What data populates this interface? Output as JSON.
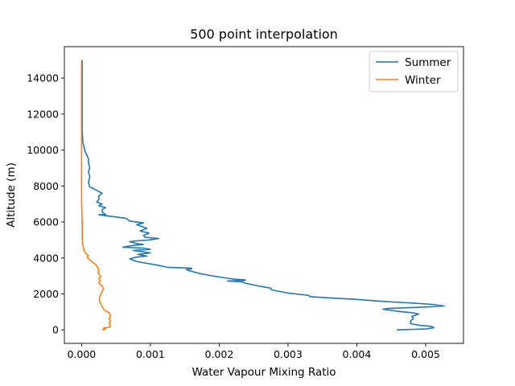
{
  "chart_data": {
    "type": "line",
    "title": "500 point interpolation",
    "xlabel": "Water Vapour Mixing Ratio",
    "ylabel": "Altitude (m)",
    "xlim": [
      -0.00025,
      0.00555
    ],
    "ylim": [
      -750,
      15750
    ],
    "xticks": [
      0,
      0.001,
      0.002,
      0.003,
      0.004,
      0.005
    ],
    "xtick_labels": [
      "0.000",
      "0.001",
      "0.002",
      "0.003",
      "0.004",
      "0.005"
    ],
    "yticks": [
      0,
      2000,
      4000,
      6000,
      8000,
      10000,
      12000,
      14000
    ],
    "ytick_labels": [
      "0",
      "2000",
      "4000",
      "6000",
      "8000",
      "10000",
      "12000",
      "14000"
    ],
    "grid": false,
    "legend_position": "top-right",
    "series": [
      {
        "name": "Summer",
        "color": "#1f77b4",
        "points": [
          [
            0.00458,
            0
          ],
          [
            0.005,
            50
          ],
          [
            0.00512,
            120
          ],
          [
            0.00508,
            200
          ],
          [
            0.0049,
            260
          ],
          [
            0.00478,
            350
          ],
          [
            0.00478,
            500
          ],
          [
            0.00482,
            620
          ],
          [
            0.0048,
            750
          ],
          [
            0.0049,
            880
          ],
          [
            0.00482,
            950
          ],
          [
            0.00463,
            1020
          ],
          [
            0.00438,
            1150
          ],
          [
            0.00448,
            1200
          ],
          [
            0.005,
            1270
          ],
          [
            0.00527,
            1330
          ],
          [
            0.0051,
            1420
          ],
          [
            0.00478,
            1500
          ],
          [
            0.0044,
            1580
          ],
          [
            0.00398,
            1700
          ],
          [
            0.0036,
            1780
          ],
          [
            0.00332,
            1850
          ],
          [
            0.0033,
            1920
          ],
          [
            0.003,
            2050
          ],
          [
            0.00282,
            2180
          ],
          [
            0.00275,
            2250
          ],
          [
            0.00275,
            2320
          ],
          [
            0.0026,
            2420
          ],
          [
            0.00238,
            2600
          ],
          [
            0.00232,
            2680
          ],
          [
            0.00212,
            2720
          ],
          [
            0.00238,
            2750
          ],
          [
            0.00238,
            2780
          ],
          [
            0.00222,
            2820
          ],
          [
            0.00212,
            2870
          ],
          [
            0.0019,
            3000
          ],
          [
            0.0017,
            3150
          ],
          [
            0.0016,
            3250
          ],
          [
            0.00152,
            3350
          ],
          [
            0.0016,
            3400
          ],
          [
            0.0016,
            3430
          ],
          [
            0.00145,
            3450
          ],
          [
            0.00125,
            3480
          ],
          [
            0.0011,
            3600
          ],
          [
            0.00095,
            3700
          ],
          [
            0.0008,
            3800
          ],
          [
            0.0007,
            3950
          ],
          [
            0.0008,
            4050
          ],
          [
            0.00095,
            4100
          ],
          [
            0.00082,
            4200
          ],
          [
            0.001,
            4280
          ],
          [
            0.00088,
            4350
          ],
          [
            0.00075,
            4420
          ],
          [
            0.001,
            4480
          ],
          [
            0.0009,
            4550
          ],
          [
            0.0006,
            4600
          ],
          [
            0.00072,
            4680
          ],
          [
            0.0009,
            4750
          ],
          [
            0.0008,
            4800
          ],
          [
            0.0007,
            4900
          ],
          [
            0.0008,
            4950
          ],
          [
            0.00098,
            5000
          ],
          [
            0.00112,
            5080
          ],
          [
            0.00092,
            5150
          ],
          [
            0.0009,
            5250
          ],
          [
            0.00098,
            5380
          ],
          [
            0.00085,
            5500
          ],
          [
            0.00095,
            5650
          ],
          [
            0.0008,
            5850
          ],
          [
            0.0009,
            5950
          ],
          [
            0.0007,
            6050
          ],
          [
            0.00065,
            6200
          ],
          [
            0.00035,
            6350
          ],
          [
            0.00025,
            6400
          ],
          [
            0.00035,
            6420
          ],
          [
            0.0003,
            6550
          ],
          [
            0.0003,
            6700
          ],
          [
            0.00035,
            6800
          ],
          [
            0.00025,
            6900
          ],
          [
            0.0003,
            7000
          ],
          [
            0.00022,
            7100
          ],
          [
            0.00025,
            7250
          ],
          [
            0.00025,
            7450
          ],
          [
            0.0003,
            7600
          ],
          [
            0.0002,
            7800
          ],
          [
            0.00012,
            7950
          ],
          [
            0.0001,
            8200
          ],
          [
            0.00012,
            8500
          ],
          [
            0.0001,
            8800
          ],
          [
            0.00012,
            9000
          ],
          [
            0.0001,
            9300
          ],
          [
            0.0001,
            9500
          ],
          [
            8e-05,
            9700
          ],
          [
            5e-05,
            9900
          ],
          [
            4e-05,
            10100
          ],
          [
            2e-05,
            10400
          ],
          [
            1e-05,
            11000
          ],
          [
            1e-05,
            12000
          ],
          [
            1e-05,
            13500
          ],
          [
            1e-05,
            15000
          ]
        ]
      },
      {
        "name": "Winter",
        "color": "#ff7f0e",
        "points": [
          [
            0.0003,
            0
          ],
          [
            0.00035,
            50
          ],
          [
            0.00032,
            100
          ],
          [
            0.0004,
            150
          ],
          [
            0.00042,
            250
          ],
          [
            0.0004,
            350
          ],
          [
            0.00042,
            500
          ],
          [
            0.0004,
            650
          ],
          [
            0.00042,
            800
          ],
          [
            0.0004,
            950
          ],
          [
            0.00035,
            1050
          ],
          [
            0.00032,
            1150
          ],
          [
            0.0003,
            1300
          ],
          [
            0.00028,
            1450
          ],
          [
            0.00026,
            1600
          ],
          [
            0.00026,
            1800
          ],
          [
            0.00028,
            2000
          ],
          [
            0.0003,
            2150
          ],
          [
            0.00032,
            2300
          ],
          [
            0.0003,
            2450
          ],
          [
            0.00026,
            2550
          ],
          [
            0.00025,
            2650
          ],
          [
            0.00027,
            2750
          ],
          [
            0.00025,
            2850
          ],
          [
            0.00028,
            2950
          ],
          [
            0.00026,
            3050
          ],
          [
            0.00024,
            3200
          ],
          [
            0.00025,
            3300
          ],
          [
            0.00025,
            3400
          ],
          [
            0.00023,
            3500
          ],
          [
            0.0002,
            3650
          ],
          [
            0.00015,
            3800
          ],
          [
            0.0001,
            3950
          ],
          [
            8e-05,
            4050
          ],
          [
            0.0001,
            4120
          ],
          [
            5e-05,
            4300
          ],
          [
            3e-05,
            4500
          ],
          [
            2e-05,
            4700
          ],
          [
            1e-05,
            5000
          ],
          [
            1e-05,
            5500
          ],
          [
            1e-05,
            6000
          ],
          [
            0.0,
            7000
          ],
          [
            0.0,
            8000
          ],
          [
            0.0,
            9000
          ],
          [
            0.0,
            10000
          ],
          [
            0.0,
            11000
          ],
          [
            0.0,
            12000
          ],
          [
            0.0,
            13000
          ],
          [
            0.0,
            14000
          ],
          [
            0.0,
            15000
          ]
        ]
      }
    ]
  }
}
